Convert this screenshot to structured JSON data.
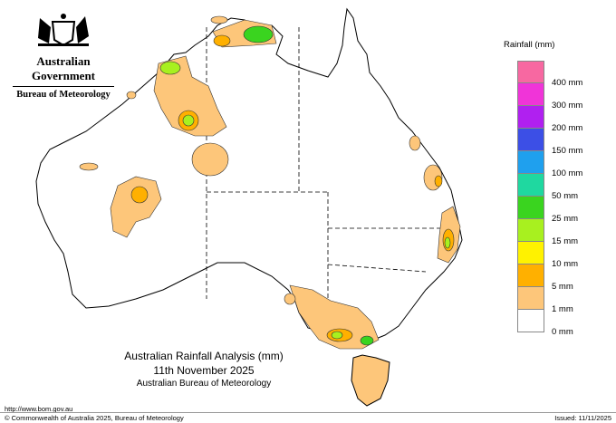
{
  "agency": {
    "government": "Australian Government",
    "bureau": "Bureau of Meteorology"
  },
  "legend": {
    "title": "Rainfall (mm)",
    "items": [
      {
        "label": "",
        "color": "#f768a1"
      },
      {
        "label": "400 mm",
        "color": "#f034d8"
      },
      {
        "label": "300 mm",
        "color": "#b020f0"
      },
      {
        "label": "200 mm",
        "color": "#3c4fe6"
      },
      {
        "label": "150 mm",
        "color": "#1fa0ee"
      },
      {
        "label": "100 mm",
        "color": "#1fd8a0"
      },
      {
        "label": "50 mm",
        "color": "#3ad41f"
      },
      {
        "label": "25 mm",
        "color": "#a8f01f"
      },
      {
        "label": "15 mm",
        "color": "#fff200"
      },
      {
        "label": "10 mm",
        "color": "#ffb000"
      },
      {
        "label": "5 mm",
        "color": "#fdc67a"
      },
      {
        "label": "1 mm",
        "color": "#ffffff"
      },
      {
        "label": "0 mm",
        "color": ""
      }
    ]
  },
  "title": {
    "line1": "Australian Rainfall Analysis (mm)",
    "line2": "11th November 2025",
    "line3": "Australian Bureau of Meteorology"
  },
  "footer": {
    "url": "http://www.bom.gov.au",
    "copyright": "© Commonwealth of Australia 2025, Bureau of Meteorology",
    "issued": "Issued: 11/11/2025"
  }
}
